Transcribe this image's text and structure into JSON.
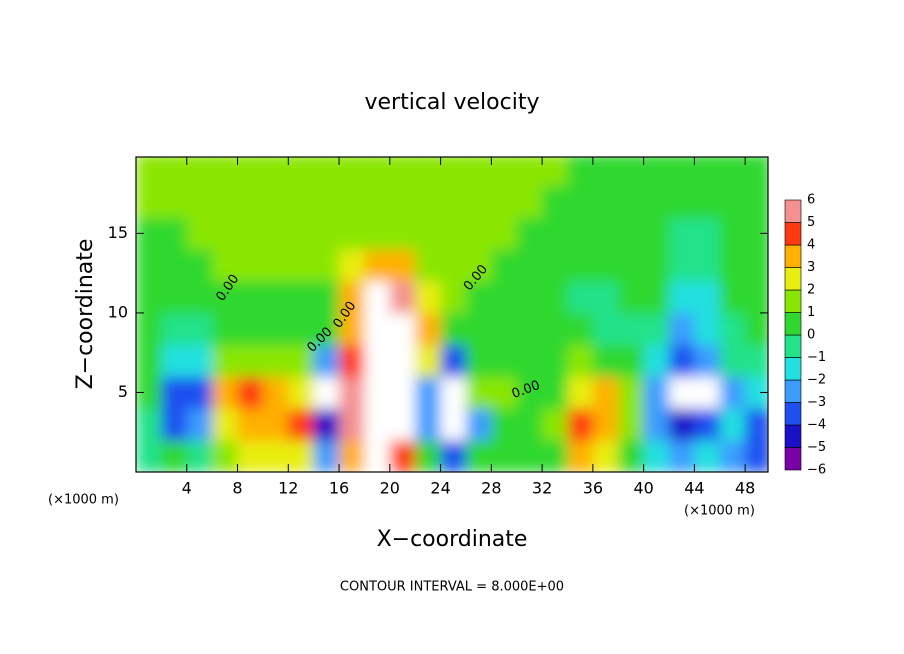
{
  "chart_data": {
    "type": "heatmap",
    "title": "vertical velocity",
    "x_label": "X−coordinate",
    "y_label": "Z−coordinate",
    "x_unit_left": "(×1000 m)",
    "x_unit_right": "(×1000 m)",
    "note": "CONTOUR INTERVAL = 8.000E+00",
    "contour_label": "0.00",
    "xlim": [
      0,
      49.8
    ],
    "ylim": [
      0,
      19.8
    ],
    "xticks": [
      4,
      8,
      12,
      16,
      20,
      24,
      28,
      32,
      36,
      40,
      44,
      48
    ],
    "yticks": [
      5,
      10,
      15
    ],
    "x": [
      1,
      3,
      5,
      7,
      9,
      11,
      13,
      15,
      17,
      19,
      21,
      23,
      25,
      27,
      29,
      31,
      33,
      35,
      37,
      39,
      41,
      43,
      45,
      47,
      49
    ],
    "y": [
      1,
      3,
      5,
      7,
      9,
      11,
      13,
      15,
      17,
      19
    ],
    "values": [
      [
        -1,
        0,
        -1,
        1,
        2,
        2,
        2,
        -3,
        3,
        8,
        4,
        0,
        -4,
        0,
        0,
        0,
        0,
        3,
        2,
        0,
        -2,
        -3,
        -2,
        -3,
        -4
      ],
      [
        -1,
        -4,
        -3,
        2,
        3,
        3,
        4,
        -5,
        5,
        8,
        8,
        -3,
        8,
        -3,
        0,
        0,
        1,
        4,
        3,
        1,
        -3,
        -5,
        -4,
        -2,
        -4
      ],
      [
        0,
        -4,
        -4,
        3,
        4,
        3,
        2,
        8,
        5,
        8,
        8,
        -3,
        8,
        1,
        1,
        0,
        0,
        2,
        3,
        1,
        -3,
        8,
        8,
        -3,
        -2
      ],
      [
        0,
        -2,
        -2,
        1,
        1,
        1,
        1,
        -3,
        4,
        8,
        8,
        2,
        -4,
        0,
        0,
        0,
        0,
        1,
        0,
        0,
        -2,
        -4,
        -3,
        -1,
        -1
      ],
      [
        0,
        -1,
        -1,
        0,
        0,
        0,
        0,
        0,
        3,
        8,
        8,
        3,
        0,
        0,
        0,
        0,
        0,
        0,
        -1,
        -1,
        -1,
        -3,
        -2,
        -1,
        0
      ],
      [
        0,
        0,
        0,
        0,
        0,
        0,
        0,
        0,
        3,
        6,
        5,
        2,
        1,
        0,
        0,
        0,
        0,
        -1,
        -1,
        0,
        0,
        -2,
        -2,
        0,
        0
      ],
      [
        0,
        0,
        0,
        1,
        1,
        1,
        1,
        1,
        2,
        3,
        3,
        1,
        1,
        1,
        0,
        0,
        0,
        0,
        0,
        0,
        0,
        -1,
        -1,
        0,
        0
      ],
      [
        0,
        0,
        1,
        1,
        1,
        1,
        1,
        1,
        1,
        1,
        1,
        1,
        1,
        1,
        1,
        0,
        0,
        0,
        0,
        0,
        0,
        -1,
        -1,
        0,
        0
      ],
      [
        1,
        1,
        1,
        1,
        1,
        1,
        1,
        1,
        1,
        1,
        1,
        1,
        1,
        1,
        1,
        1,
        0,
        0,
        0,
        0,
        0,
        0,
        0,
        0,
        0
      ],
      [
        1,
        1,
        1,
        1,
        1,
        1,
        1,
        1,
        1,
        1,
        1,
        1,
        1,
        1,
        1,
        1,
        1,
        0,
        0,
        0,
        0,
        0,
        0,
        0,
        0
      ]
    ],
    "colorbar_ticks": [
      6,
      5,
      4,
      3,
      2,
      1,
      0,
      {
        "value": -1,
        "label": "−1"
      },
      {
        "value": -2,
        "label": "−2"
      },
      {
        "value": -3,
        "label": "−3"
      },
      {
        "value": -4,
        "label": "−4"
      },
      {
        "value": -5,
        "label": "−5"
      },
      {
        "value": -6,
        "label": "−6"
      }
    ],
    "colors": [
      "#7a00a8",
      "#1a10c8",
      "#1e50f0",
      "#3a9cff",
      "#22e0e0",
      "#22e28a",
      "#2ed82e",
      "#8ae600",
      "#e8ee10",
      "#ffb000",
      "#ff3a10",
      "#f49090"
    ],
    "over_color": "#ffffff"
  }
}
